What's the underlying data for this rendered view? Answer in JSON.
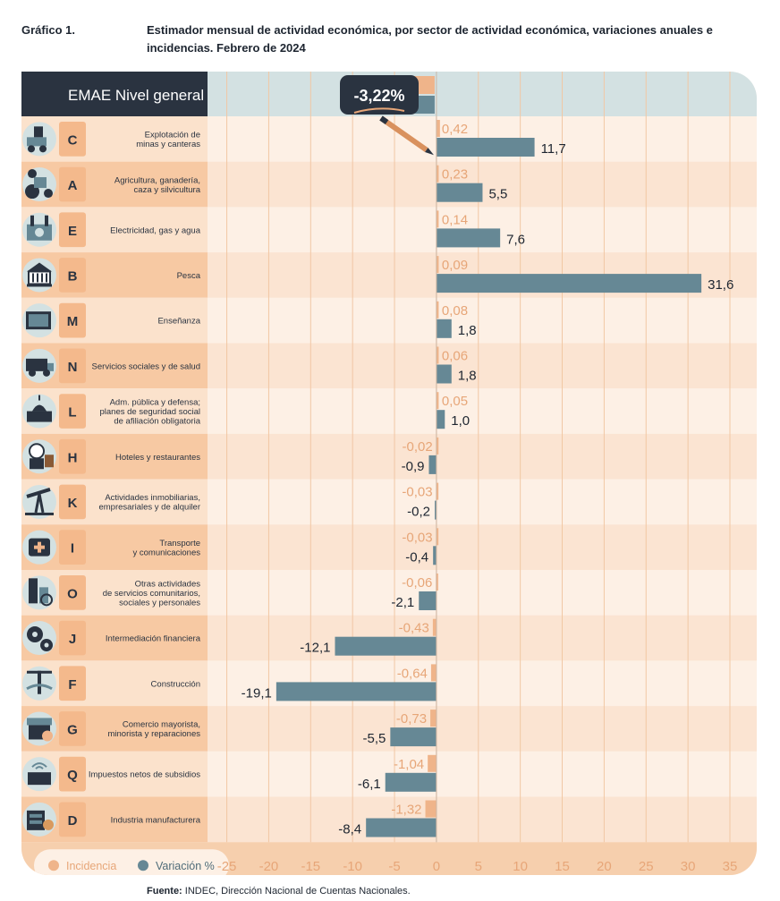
{
  "figure_label": "Gráfico 1.",
  "figure_title": "Estimador mensual de actividad económica, por sector de actividad económica, variaciones anuales e incidencias. Febrero de 2024",
  "source_label": "Fuente:",
  "source_text": "INDEC, Dirección Nacional de Cuentas Nacionales.",
  "colors": {
    "incidencia": "#efb48a",
    "variacion": "#668895",
    "header_dark": "#2a3340",
    "header_light": "#d3e1e2",
    "row_light": "#fdf0e5",
    "row_alt": "#fbe4d2",
    "label_col": "#f7c9a3"
  },
  "chart_data": {
    "type": "bar",
    "orientation": "horizontal",
    "general": {
      "label": "EMAE Nivel general",
      "value_label": "-3,22%",
      "variacion": -3.22
    },
    "x_ticks": [
      -25,
      -20,
      -15,
      -10,
      -5,
      0,
      5,
      10,
      15,
      20,
      25,
      30,
      35
    ],
    "xlim": [
      -27.3,
      38.2
    ],
    "legend": {
      "position": "bottom-left",
      "items": [
        "Incidencia",
        "Variación %"
      ]
    },
    "sectors": [
      {
        "code": "C",
        "name": [
          "Explotación de",
          "minas y canteras"
        ],
        "icon": "mining-icon",
        "incidencia": 0.42,
        "incidencia_label": "0,42",
        "variacion": 11.7,
        "variacion_label": "11,7"
      },
      {
        "code": "A",
        "name": [
          "Agricultura, ganadería,",
          "caza y silvicultura"
        ],
        "icon": "tractor-icon",
        "incidencia": 0.23,
        "incidencia_label": "0,23",
        "variacion": 5.5,
        "variacion_label": "5,5"
      },
      {
        "code": "E",
        "name": [
          "Electricidad, gas y agua"
        ],
        "icon": "power-plant-icon",
        "incidencia": 0.14,
        "incidencia_label": "0,14",
        "variacion": 7.6,
        "variacion_label": "7,6"
      },
      {
        "code": "B",
        "name": [
          "Pesca"
        ],
        "icon": "fishing-icon",
        "incidencia": 0.09,
        "incidencia_label": "0,09",
        "variacion": 31.6,
        "variacion_label": "31,6"
      },
      {
        "code": "M",
        "name": [
          "Enseñanza"
        ],
        "icon": "school-board-icon",
        "incidencia": 0.08,
        "incidencia_label": "0,08",
        "variacion": 1.8,
        "variacion_label": "1,8"
      },
      {
        "code": "N",
        "name": [
          "Servicios sociales y de salud"
        ],
        "icon": "ambulance-icon",
        "incidencia": 0.06,
        "incidencia_label": "0,06",
        "variacion": 1.8,
        "variacion_label": "1,8"
      },
      {
        "code": "L",
        "name": [
          "Adm. pública y defensa;",
          "planes de seguridad social",
          "de afiliación obligatoria"
        ],
        "icon": "congress-icon",
        "incidencia": 0.05,
        "incidencia_label": "0,05",
        "variacion": 1.0,
        "variacion_label": "1,0"
      },
      {
        "code": "H",
        "name": [
          "Hoteles y restaurantes"
        ],
        "icon": "bellboy-icon",
        "incidencia": -0.02,
        "incidencia_label": "-0,02",
        "variacion": -0.9,
        "variacion_label": "-0,9"
      },
      {
        "code": "K",
        "name": [
          "Actividades inmobiliarias,",
          "empresariales y de alquiler"
        ],
        "icon": "oil-pump-icon",
        "incidencia": -0.03,
        "incidencia_label": "-0,03",
        "variacion": -0.2,
        "variacion_label": "-0,2"
      },
      {
        "code": "I",
        "name": [
          "Transporte",
          "y comunicaciones"
        ],
        "icon": "first-aid-icon",
        "incidencia": -0.03,
        "incidencia_label": "-0,03",
        "variacion": -0.4,
        "variacion_label": "-0,4"
      },
      {
        "code": "O",
        "name": [
          "Otras actividades",
          "de servicios comunitarios,",
          "sociales y personales"
        ],
        "icon": "city-services-icon",
        "incidencia": -0.06,
        "incidencia_label": "-0,06",
        "variacion": -2.1,
        "variacion_label": "-2,1"
      },
      {
        "code": "J",
        "name": [
          "Intermediación financiera"
        ],
        "icon": "gears-icon",
        "incidencia": -0.43,
        "incidencia_label": "-0,43",
        "variacion": -12.1,
        "variacion_label": "-12,1"
      },
      {
        "code": "F",
        "name": [
          "Construcción"
        ],
        "icon": "crane-icon",
        "incidencia": -0.64,
        "incidencia_label": "-0,64",
        "variacion": -19.1,
        "variacion_label": "-19,1"
      },
      {
        "code": "G",
        "name": [
          "Comercio mayorista,",
          "minorista y reparaciones"
        ],
        "icon": "shop-icon",
        "incidencia": -0.73,
        "incidencia_label": "-0,73",
        "variacion": -5.5,
        "variacion_label": "-5,5"
      },
      {
        "code": "Q",
        "name": [
          "Impuestos netos de subsidios"
        ],
        "icon": "taxes-icon",
        "incidencia": -1.04,
        "incidencia_label": "-1,04",
        "variacion": -6.1,
        "variacion_label": "-6,1"
      },
      {
        "code": "D",
        "name": [
          "Industria manufacturera"
        ],
        "icon": "factory-icon",
        "incidencia": -1.32,
        "incidencia_label": "-1,32",
        "variacion": -8.4,
        "variacion_label": "-8,4"
      }
    ]
  }
}
